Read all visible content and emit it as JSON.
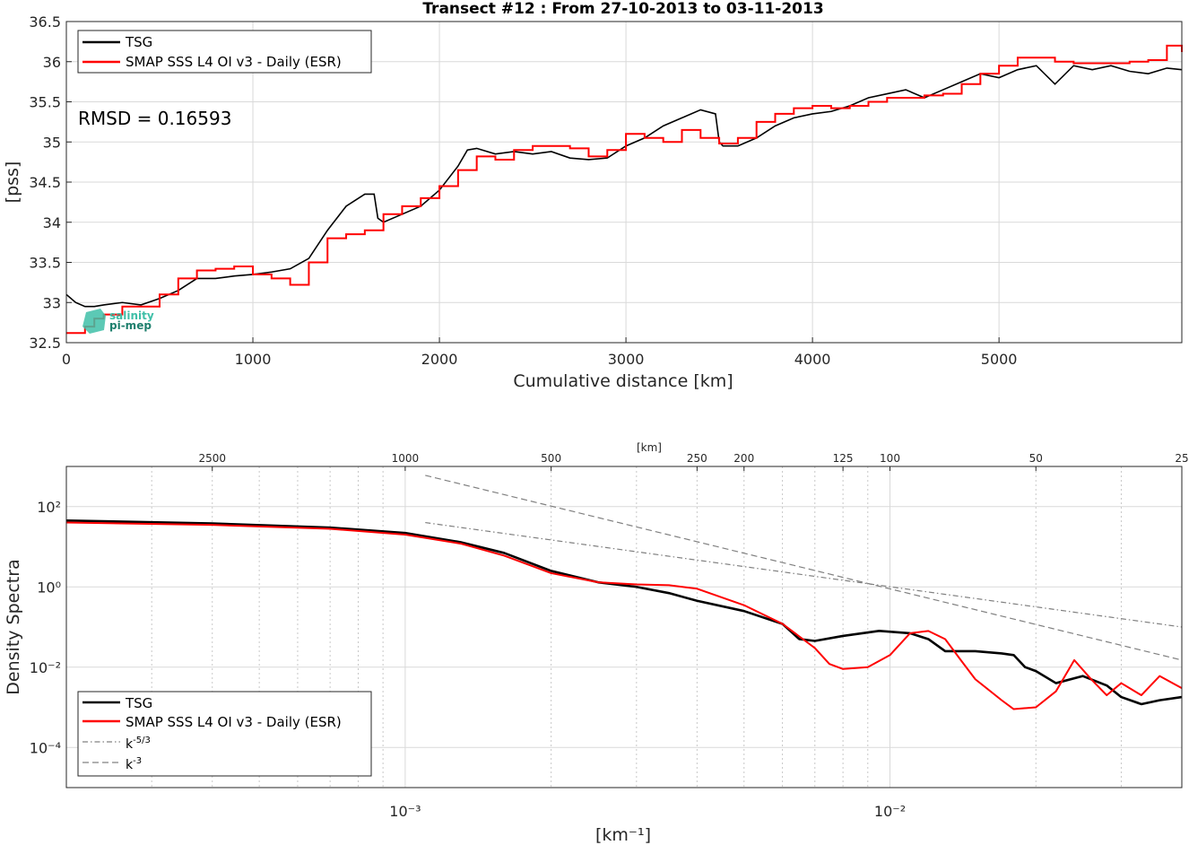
{
  "chart_data": [
    {
      "type": "line",
      "title": "Transect #12 : From 27-10-2013 to 03-11-2013",
      "xlabel": "Cumulative distance [km]",
      "ylabel": "[pss]",
      "xlim": [
        0,
        5980
      ],
      "ylim": [
        32.5,
        36.5
      ],
      "xticks": [
        "0",
        "1000",
        "2000",
        "3000",
        "4000",
        "5000"
      ],
      "yticks": [
        "32.5",
        "33",
        "33.5",
        "34",
        "34.5",
        "35",
        "35.5",
        "36",
        "36.5"
      ],
      "grid": true,
      "legend_position": "top-left",
      "annotation": "RMSD = 0.16593",
      "logo_text": [
        "salinity",
        "pi-mep"
      ],
      "series": [
        {
          "name": "TSG",
          "color": "#000000",
          "x": [
            0,
            50,
            100,
            150,
            200,
            300,
            400,
            500,
            600,
            700,
            800,
            900,
            1000,
            1100,
            1200,
            1300,
            1400,
            1500,
            1600,
            1650,
            1670,
            1700,
            1800,
            1900,
            2000,
            2100,
            2150,
            2200,
            2300,
            2400,
            2500,
            2600,
            2700,
            2800,
            2900,
            3000,
            3100,
            3200,
            3300,
            3400,
            3480,
            3500,
            3520,
            3600,
            3700,
            3800,
            3900,
            4000,
            4100,
            4200,
            4300,
            4400,
            4500,
            4600,
            4700,
            4800,
            4900,
            5000,
            5100,
            5200,
            5300,
            5400,
            5500,
            5600,
            5700,
            5800,
            5900,
            5980
          ],
          "y": [
            33.1,
            33.0,
            32.95,
            32.95,
            32.97,
            33.0,
            32.97,
            33.05,
            33.15,
            33.3,
            33.3,
            33.33,
            33.35,
            33.38,
            33.42,
            33.55,
            33.9,
            34.2,
            34.35,
            34.35,
            34.05,
            34.0,
            34.1,
            34.2,
            34.4,
            34.7,
            34.9,
            34.92,
            34.85,
            34.88,
            34.85,
            34.88,
            34.8,
            34.78,
            34.8,
            34.95,
            35.05,
            35.2,
            35.3,
            35.4,
            35.35,
            35.0,
            34.95,
            34.95,
            35.05,
            35.2,
            35.3,
            35.35,
            35.38,
            35.45,
            35.55,
            35.6,
            35.65,
            35.55,
            35.65,
            35.75,
            35.85,
            35.8,
            35.9,
            35.95,
            35.72,
            35.95,
            35.9,
            35.95,
            35.88,
            35.85,
            35.92,
            35.9
          ]
        },
        {
          "name": "SMAP SSS L4 OI v3 - Daily (ESR)",
          "color": "#ff0000",
          "x": [
            0,
            50,
            100,
            150,
            200,
            300,
            400,
            500,
            600,
            700,
            800,
            900,
            1000,
            1100,
            1200,
            1300,
            1400,
            1500,
            1600,
            1700,
            1800,
            1900,
            2000,
            2100,
            2200,
            2300,
            2400,
            2500,
            2600,
            2700,
            2800,
            2900,
            3000,
            3100,
            3200,
            3300,
            3400,
            3500,
            3600,
            3700,
            3800,
            3900,
            4000,
            4100,
            4200,
            4300,
            4400,
            4500,
            4600,
            4700,
            4800,
            4900,
            5000,
            5100,
            5200,
            5300,
            5400,
            5500,
            5600,
            5700,
            5800,
            5900,
            5980
          ],
          "y": [
            32.62,
            32.62,
            32.7,
            32.8,
            32.85,
            32.95,
            32.95,
            33.1,
            33.3,
            33.4,
            33.42,
            33.45,
            33.35,
            33.3,
            33.22,
            33.5,
            33.8,
            33.85,
            33.9,
            34.1,
            34.2,
            34.3,
            34.45,
            34.65,
            34.82,
            34.78,
            34.9,
            34.95,
            34.95,
            34.92,
            34.82,
            34.9,
            35.1,
            35.05,
            35.0,
            35.15,
            35.05,
            34.98,
            35.05,
            35.25,
            35.35,
            35.42,
            35.45,
            35.42,
            35.45,
            35.5,
            35.55,
            35.55,
            35.58,
            35.6,
            35.72,
            35.85,
            35.95,
            36.05,
            36.05,
            36.0,
            35.98,
            35.98,
            35.98,
            36.0,
            36.02,
            36.2,
            36.12
          ]
        }
      ]
    },
    {
      "type": "line",
      "xlabel": "[km⁻¹]",
      "ylabel": "Density Spectra",
      "top_axis_label": "[km]",
      "x_scale": "log",
      "y_scale": "log",
      "xlim": [
        0.0002,
        0.04
      ],
      "ylim": [
        1e-05,
        1000
      ],
      "xticks": [
        "10⁻³",
        "10⁻²"
      ],
      "yticks": [
        "10²",
        "10⁰",
        "10⁻²",
        "10⁻⁴"
      ],
      "top_ticks_km": [
        2500,
        1000,
        500,
        250,
        200,
        125,
        100,
        50,
        25
      ],
      "grid": true,
      "legend_position": "bottom-left",
      "series": [
        {
          "name": "TSG",
          "color": "#000000",
          "x": [
            0.0002,
            0.0004,
            0.0007,
            0.001,
            0.0013,
            0.0016,
            0.002,
            0.0025,
            0.003,
            0.0035,
            0.004,
            0.005,
            0.006,
            0.0065,
            0.007,
            0.008,
            0.0095,
            0.011,
            0.012,
            0.013,
            0.015,
            0.017,
            0.018,
            0.019,
            0.02,
            0.022,
            0.025,
            0.028,
            0.03,
            0.033,
            0.036,
            0.04
          ],
          "y": [
            45,
            38,
            30,
            22,
            13,
            7,
            2.5,
            1.3,
            1.0,
            0.7,
            0.45,
            0.25,
            0.12,
            0.05,
            0.045,
            0.06,
            0.08,
            0.07,
            0.05,
            0.025,
            0.025,
            0.022,
            0.02,
            0.01,
            0.008,
            0.004,
            0.006,
            0.0035,
            0.0018,
            0.0012,
            0.0015,
            0.0018
          ]
        },
        {
          "name": "SMAP SSS L4 OI v3 - Daily (ESR)",
          "color": "#ff0000",
          "x": [
            0.0002,
            0.0004,
            0.0007,
            0.001,
            0.0013,
            0.0016,
            0.002,
            0.0025,
            0.003,
            0.0035,
            0.004,
            0.005,
            0.006,
            0.007,
            0.0075,
            0.008,
            0.009,
            0.01,
            0.011,
            0.012,
            0.013,
            0.014,
            0.015,
            0.017,
            0.018,
            0.02,
            0.022,
            0.024,
            0.026,
            0.028,
            0.03,
            0.033,
            0.036,
            0.04
          ],
          "y": [
            40,
            35,
            28,
            20,
            12,
            6,
            2.2,
            1.3,
            1.15,
            1.1,
            0.9,
            0.35,
            0.12,
            0.03,
            0.012,
            0.009,
            0.01,
            0.02,
            0.07,
            0.08,
            0.05,
            0.015,
            0.005,
            0.0015,
            0.0009,
            0.001,
            0.0025,
            0.015,
            0.005,
            0.002,
            0.004,
            0.002,
            0.006,
            0.003
          ]
        },
        {
          "name": "k⁻⁵ᐟ³",
          "color": "#808080",
          "x": [
            0.0011,
            0.04
          ],
          "y": [
            40,
            0.1
          ]
        },
        {
          "name": "k⁻³",
          "color": "#808080",
          "x": [
            0.0011,
            0.04
          ],
          "y": [
            600,
            0.015
          ]
        }
      ]
    }
  ]
}
